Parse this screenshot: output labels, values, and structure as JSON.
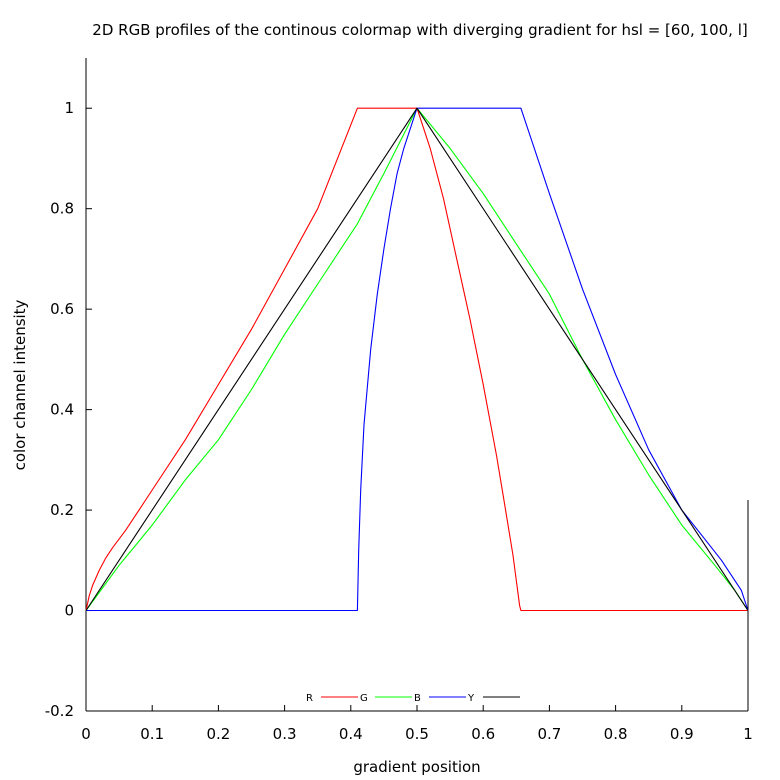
{
  "chart_data": {
    "type": "line",
    "title": "2D RGB profiles of the continous colormap with diverging gradient for hsl = [60, 100, l]",
    "xlabel": "gradient position",
    "ylabel": "color channel intensity",
    "xlim": [
      0,
      1
    ],
    "ylim": [
      -0.2,
      1.1
    ],
    "xticks": [
      0,
      0.1,
      0.2,
      0.3,
      0.4,
      0.5,
      0.6,
      0.7,
      0.8,
      0.9,
      1
    ],
    "xtick_labels": [
      "0",
      "0.1",
      "0.2",
      "0.3",
      "0.4",
      "0.5",
      "0.6",
      "0.7",
      "0.8",
      "0.9",
      "1"
    ],
    "yticks": [
      -0.2,
      0,
      0.2,
      0.4,
      0.6,
      0.8,
      1
    ],
    "ytick_labels": [
      "-0.2",
      "0",
      "0.2",
      "0.4",
      "0.6",
      "0.8",
      "1"
    ],
    "grid": false,
    "legend_position": "bottom-center",
    "series": [
      {
        "name": "R",
        "color": "#ff0000",
        "x": [
          0,
          0.005,
          0.01,
          0.02,
          0.03,
          0.04,
          0.06,
          0.08,
          0.1,
          0.15,
          0.2,
          0.25,
          0.3,
          0.35,
          0.41,
          0.45,
          0.5,
          0.52,
          0.54,
          0.56,
          0.58,
          0.6,
          0.62,
          0.63,
          0.64,
          0.645,
          0.65,
          0.653,
          0.655,
          0.657,
          0.66,
          0.7,
          0.8,
          0.9,
          1
        ],
        "y": [
          0,
          0.03,
          0.05,
          0.08,
          0.105,
          0.125,
          0.16,
          0.2,
          0.24,
          0.34,
          0.45,
          0.56,
          0.68,
          0.8,
          1,
          1,
          1,
          0.92,
          0.82,
          0.7,
          0.58,
          0.45,
          0.31,
          0.23,
          0.15,
          0.11,
          0.06,
          0.03,
          0.01,
          0,
          0,
          0,
          0,
          0,
          0
        ]
      },
      {
        "name": "G",
        "color": "#00ff00",
        "x": [
          0,
          0.05,
          0.1,
          0.15,
          0.2,
          0.25,
          0.3,
          0.35,
          0.41,
          0.45,
          0.5,
          0.55,
          0.6,
          0.65,
          0.7,
          0.75,
          0.8,
          0.85,
          0.9,
          0.95,
          0.98,
          1
        ],
        "y": [
          0,
          0.09,
          0.17,
          0.26,
          0.34,
          0.44,
          0.55,
          0.65,
          0.77,
          0.87,
          1,
          0.92,
          0.83,
          0.73,
          0.63,
          0.5,
          0.38,
          0.27,
          0.17,
          0.09,
          0.04,
          0
        ]
      },
      {
        "name": "B",
        "color": "#0000ff",
        "x": [
          0,
          0.2,
          0.41,
          0.412,
          0.415,
          0.42,
          0.43,
          0.44,
          0.45,
          0.46,
          0.47,
          0.48,
          0.49,
          0.5,
          0.53,
          0.56,
          0.6,
          0.657,
          0.7,
          0.75,
          0.8,
          0.85,
          0.9,
          0.93,
          0.96,
          0.98,
          0.99,
          0.995,
          1
        ],
        "y": [
          0,
          0,
          0,
          0.12,
          0.24,
          0.37,
          0.52,
          0.63,
          0.72,
          0.8,
          0.87,
          0.92,
          0.96,
          1,
          1,
          1,
          1,
          1,
          0.83,
          0.64,
          0.47,
          0.32,
          0.2,
          0.15,
          0.1,
          0.06,
          0.04,
          0.02,
          0
        ]
      },
      {
        "name": "Y",
        "color": "#000000",
        "x": [
          0,
          0.5,
          1
        ],
        "y": [
          0,
          1,
          0
        ]
      }
    ]
  }
}
